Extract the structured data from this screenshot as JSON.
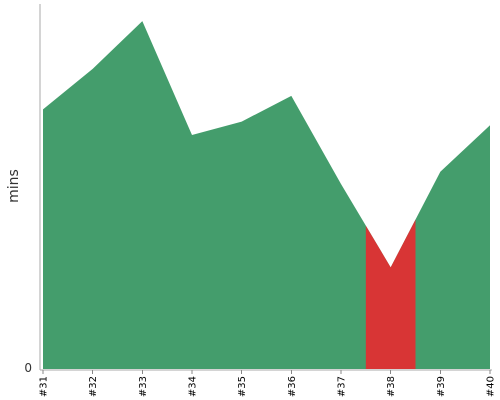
{
  "chart_data": {
    "type": "area",
    "title": "",
    "xlabel": "",
    "ylabel": "mins",
    "categories": [
      "#31",
      "#32",
      "#33",
      "#34",
      "#35",
      "#36",
      "#37",
      "#38",
      "#39",
      "#40"
    ],
    "series": [
      {
        "values": [
          21.2,
          24.5,
          28.4,
          19.1,
          20.2,
          22.3,
          15.1,
          8.3,
          16.1,
          19.9
        ],
        "color": "#449d6c",
        "highlight": [
          {
            "category": "#38",
            "color": "#d83535"
          }
        ]
      }
    ],
    "ylim": [
      0,
      29.8
    ],
    "y_ticks": [
      "0"
    ],
    "grid": false,
    "legend": "none"
  }
}
